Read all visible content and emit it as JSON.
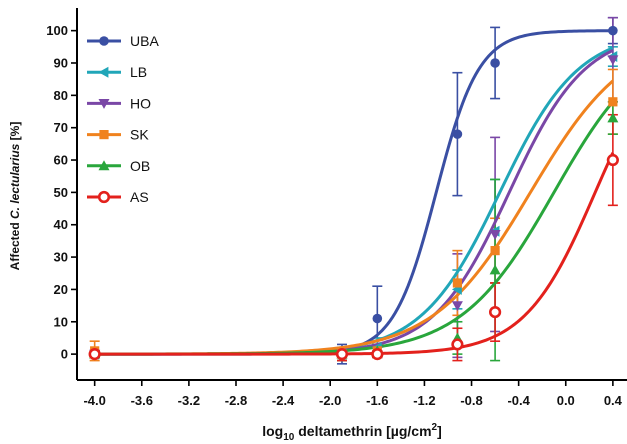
{
  "chart_data": {
    "type": "scatter",
    "xlabel": {
      "prefix": "log",
      "subscript": "10",
      "main": " deltamethrin [µg/cm",
      "superscript": "2",
      "suffix": "]"
    },
    "ylabel": {
      "prefix": "Affected ",
      "italic": "C. lectularius",
      "suffix": " [%]"
    },
    "xlim": [
      -4.15,
      0.52
    ],
    "ylim": [
      -8,
      107
    ],
    "x_ticks": [
      -4.0,
      -3.6,
      -3.2,
      -2.8,
      -2.4,
      -2.0,
      -1.6,
      -1.2,
      -0.8,
      -0.4,
      0.0,
      0.4
    ],
    "x_tick_labels": [
      "-4.0",
      "-3.6",
      "-3.2",
      "-2.8",
      "-2.4",
      "-2.0",
      "-1.6",
      "-1.2",
      "-0.8",
      "-0.4",
      "0.0",
      "0.4"
    ],
    "y_ticks": [
      0,
      10,
      20,
      30,
      40,
      50,
      60,
      70,
      80,
      90,
      100
    ],
    "y_tick_labels": [
      "0",
      "10",
      "20",
      "30",
      "40",
      "50",
      "60",
      "70",
      "80",
      "90",
      "100"
    ],
    "grid": false,
    "legend_position": "top-left",
    "series": [
      {
        "name": "UBA",
        "color": "#3a4fa3",
        "marker": "circle",
        "fit": {
          "bottom": 0,
          "top": 100,
          "logEC50": -1.1,
          "hill": 2.4
        },
        "points": [
          {
            "x": -4.0,
            "y": 0,
            "err": 1
          },
          {
            "x": -1.9,
            "y": 0,
            "err": 3
          },
          {
            "x": -1.6,
            "y": 11,
            "err": 10
          },
          {
            "x": -0.92,
            "y": 68,
            "err": 19
          },
          {
            "x": -0.6,
            "y": 90,
            "err": 11
          },
          {
            "x": 0.4,
            "y": 100,
            "err": 4
          }
        ]
      },
      {
        "name": "LB",
        "color": "#21a6b8",
        "marker": "triangle-left",
        "fit": {
          "bottom": 0,
          "top": 100,
          "logEC50": -0.56,
          "hill": 1.3
        },
        "points": [
          {
            "x": -4.0,
            "y": 0,
            "err": 1
          },
          {
            "x": -1.9,
            "y": 0,
            "err": 2
          },
          {
            "x": -1.6,
            "y": 2,
            "err": 3
          },
          {
            "x": -0.92,
            "y": 20,
            "err": 6
          },
          {
            "x": -0.6,
            "y": 38,
            "err": 16
          },
          {
            "x": 0.4,
            "y": 92,
            "err": 3
          }
        ]
      },
      {
        "name": "HO",
        "color": "#7a47a6",
        "marker": "triangle-down",
        "fit": {
          "bottom": 0,
          "top": 100,
          "logEC50": -0.48,
          "hill": 1.35
        },
        "points": [
          {
            "x": -4.0,
            "y": 0,
            "err": 1
          },
          {
            "x": -1.9,
            "y": 0,
            "err": 2
          },
          {
            "x": -1.6,
            "y": 1,
            "err": 2
          },
          {
            "x": -0.92,
            "y": 15,
            "err": 16
          },
          {
            "x": -0.6,
            "y": 37,
            "err": 30
          },
          {
            "x": 0.4,
            "y": 91,
            "err": 13
          }
        ]
      },
      {
        "name": "SK",
        "color": "#f0821e",
        "marker": "square",
        "fit": {
          "bottom": 0,
          "top": 100,
          "logEC50": -0.3,
          "hill": 1.05
        },
        "points": [
          {
            "x": -4.0,
            "y": 1,
            "err": 3
          },
          {
            "x": -1.9,
            "y": 0,
            "err": 2
          },
          {
            "x": -1.6,
            "y": 1,
            "err": 2
          },
          {
            "x": -0.92,
            "y": 22,
            "err": 10
          },
          {
            "x": -0.6,
            "y": 32,
            "err": 10
          },
          {
            "x": 0.4,
            "y": 78,
            "err": 10
          }
        ]
      },
      {
        "name": "OB",
        "color": "#29a63c",
        "marker": "triangle-up",
        "fit": {
          "bottom": 0,
          "top": 100,
          "logEC50": -0.1,
          "hill": 1.1
        },
        "points": [
          {
            "x": -4.0,
            "y": 0,
            "err": 1
          },
          {
            "x": -1.9,
            "y": 0,
            "err": 2
          },
          {
            "x": -1.6,
            "y": 1,
            "err": 2
          },
          {
            "x": -0.92,
            "y": 5,
            "err": 5
          },
          {
            "x": -0.6,
            "y": 26,
            "err": 28
          },
          {
            "x": 0.4,
            "y": 73,
            "err": 5
          }
        ]
      },
      {
        "name": "AS",
        "color": "#e3211c",
        "marker": "circle-open",
        "fit": {
          "bottom": 0,
          "top": 100,
          "logEC50": 0.25,
          "hill": 1.45
        },
        "points": [
          {
            "x": -4.0,
            "y": 0,
            "err": 1
          },
          {
            "x": -1.9,
            "y": 0,
            "err": 2
          },
          {
            "x": -1.6,
            "y": 0,
            "err": 1
          },
          {
            "x": -0.92,
            "y": 3,
            "err": 5
          },
          {
            "x": -0.6,
            "y": 13,
            "err": 9
          },
          {
            "x": 0.4,
            "y": 60,
            "err": 14
          }
        ]
      }
    ]
  }
}
